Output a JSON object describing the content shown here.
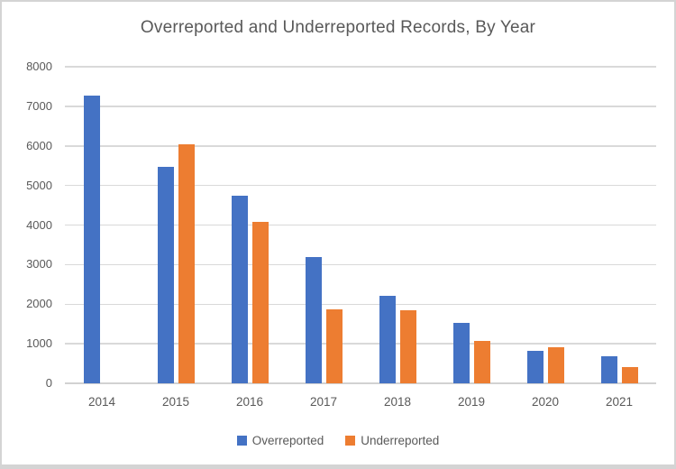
{
  "chart_data": {
    "type": "bar",
    "title": "Overreported and Underreported Records, By Year",
    "categories": [
      "2014",
      "2015",
      "2016",
      "2017",
      "2018",
      "2019",
      "2020",
      "2021"
    ],
    "series": [
      {
        "name": "Overreported",
        "color": "#4472C4",
        "values": [
          7280,
          5480,
          4750,
          3180,
          2200,
          1520,
          830,
          680
        ]
      },
      {
        "name": "Underreported",
        "color": "#ED7D31",
        "values": [
          null,
          6030,
          4090,
          1880,
          1840,
          1080,
          910,
          420
        ]
      }
    ],
    "xlabel": "",
    "ylabel": "",
    "ylim": [
      0,
      8000
    ],
    "ytick_step": 1000,
    "ytick_labels": [
      "0",
      "1000",
      "2000",
      "3000",
      "4000",
      "5000",
      "6000",
      "7000",
      "8000"
    ],
    "grid": true,
    "legend_position": "bottom",
    "gridline_color": "#D9D9D9",
    "text_color": "#595959",
    "background_color": "#FFFFFF"
  }
}
